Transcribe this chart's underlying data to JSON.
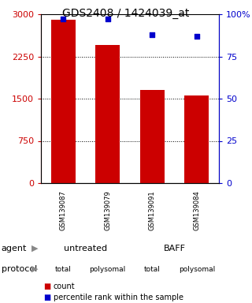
{
  "title": "GDS2408 / 1424039_at",
  "samples": [
    "GSM139087",
    "GSM139079",
    "GSM139091",
    "GSM139084"
  ],
  "counts": [
    2900,
    2450,
    1650,
    1550
  ],
  "percentiles": [
    97,
    97,
    88,
    87
  ],
  "bar_color": "#cc0000",
  "pct_color": "#0000cc",
  "ylim_left": [
    0,
    3000
  ],
  "ylim_right": [
    0,
    100
  ],
  "yticks_left": [
    0,
    750,
    1500,
    2250,
    3000
  ],
  "yticks_right": [
    0,
    25,
    50,
    75,
    100
  ],
  "ytick_labels_left": [
    "0",
    "750",
    "1500",
    "2250",
    "3000"
  ],
  "ytick_labels_right": [
    "0",
    "25",
    "50",
    "75",
    "100%"
  ],
  "grid_values": [
    750,
    1500,
    2250
  ],
  "agent_labels": [
    "untreated",
    "BAFF"
  ],
  "agent_colors": [
    "#ccffcc",
    "#44ee44"
  ],
  "protocol_colors_alt": [
    "#ffaaff",
    "#ee44ee"
  ],
  "protocol_labels": [
    "total",
    "polysomal",
    "total",
    "polysomal"
  ],
  "sample_bg_color": "#cccccc",
  "legend_count_color": "#cc0000",
  "legend_pct_color": "#0000cc",
  "title_fontsize": 10,
  "tick_fontsize": 8,
  "bar_width": 0.55
}
